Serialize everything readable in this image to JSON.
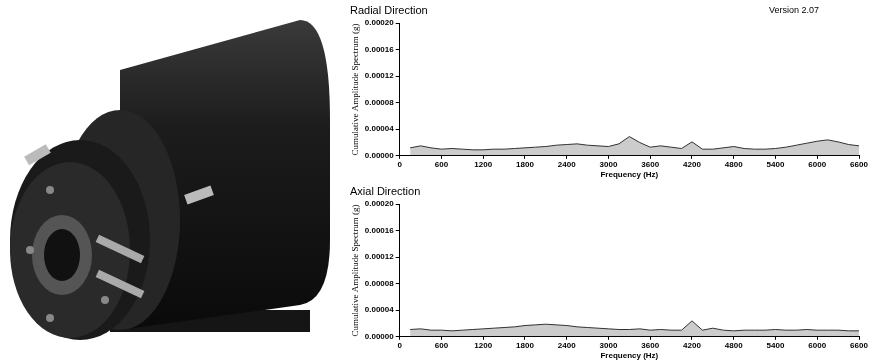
{
  "chart_data": [
    {
      "type": "line",
      "title": "Radial Direction",
      "annotation": "Version 2.07",
      "x_label": "Frequency (Hz)",
      "y_label": "Cumulative Amplitude Spectrum (g)",
      "x": [
        150,
        300,
        450,
        600,
        750,
        900,
        1050,
        1200,
        1350,
        1500,
        1650,
        1800,
        1950,
        2100,
        2250,
        2400,
        2550,
        2700,
        2850,
        3000,
        3150,
        3300,
        3450,
        3600,
        3750,
        3900,
        4050,
        4200,
        4350,
        4500,
        4650,
        4800,
        4950,
        5100,
        5250,
        5400,
        5550,
        5700,
        5850,
        6000,
        6150,
        6300,
        6450,
        6600
      ],
      "series": [
        {
          "name": "Radial Direction",
          "color": "#333333",
          "values": [
            1.2e-05,
            1.5e-05,
            1.2e-05,
            1e-05,
            1.1e-05,
            1e-05,
            9e-06,
            9e-06,
            1e-05,
            1e-05,
            1.1e-05,
            1.2e-05,
            1.3e-05,
            1.4e-05,
            1.6e-05,
            1.7e-05,
            1.8e-05,
            1.6e-05,
            1.5e-05,
            1.4e-05,
            1.8e-05,
            2.9e-05,
            2e-05,
            1.3e-05,
            1.5e-05,
            1.3e-05,
            1.1e-05,
            2.1e-05,
            1e-05,
            1e-05,
            1.2e-05,
            1.4e-05,
            1.1e-05,
            1e-05,
            1e-05,
            1.1e-05,
            1.3e-05,
            1.6e-05,
            1.9e-05,
            2.2e-05,
            2.4e-05,
            2.1e-05,
            1.7e-05,
            1.5e-05
          ]
        }
      ],
      "xlim": [
        0,
        6600
      ],
      "xticks": [
        0,
        600,
        1200,
        1800,
        2400,
        3000,
        3600,
        4200,
        4800,
        5400,
        6000,
        6600
      ],
      "ylim": [
        0,
        0.0002
      ],
      "yticks": [
        {
          "value": 0,
          "label": "0.00000"
        },
        {
          "value": 4e-05,
          "label": "0.00004"
        },
        {
          "value": 8e-05,
          "label": "0.00008"
        },
        {
          "value": 0.00012,
          "label": "0.00012"
        },
        {
          "value": 0.00016,
          "label": "0.00016"
        },
        {
          "value": 0.0002,
          "label": "0.00020"
        }
      ],
      "grid": false
    },
    {
      "type": "line",
      "title": "Axial Direction",
      "x_label": "Frequency (Hz)",
      "y_label": "Cumulative Amplitude Spectrum (g)",
      "x": [
        150,
        300,
        450,
        600,
        750,
        900,
        1050,
        1200,
        1350,
        1500,
        1650,
        1800,
        1950,
        2100,
        2250,
        2400,
        2550,
        2700,
        2850,
        3000,
        3150,
        3300,
        3450,
        3600,
        3750,
        3900,
        4050,
        4200,
        4350,
        4500,
        4650,
        4800,
        4950,
        5100,
        5250,
        5400,
        5550,
        5700,
        5850,
        6000,
        6150,
        6300,
        6450,
        6600
      ],
      "series": [
        {
          "name": "Axial Direction",
          "color": "#333333",
          "values": [
            1.1e-05,
            1.2e-05,
            1e-05,
            1e-05,
            9e-06,
            1e-05,
            1.1e-05,
            1.2e-05,
            1.3e-05,
            1.4e-05,
            1.5e-05,
            1.7e-05,
            1.8e-05,
            1.9e-05,
            1.8e-05,
            1.7e-05,
            1.5e-05,
            1.4e-05,
            1.3e-05,
            1.2e-05,
            1.1e-05,
            1.1e-05,
            1.2e-05,
            1e-05,
            1.1e-05,
            1e-05,
            1e-05,
            2.4e-05,
            1e-05,
            1.3e-05,
            1e-05,
            9e-06,
            1e-05,
            1e-05,
            1e-05,
            1.1e-05,
            1e-05,
            1e-05,
            1.1e-05,
            1e-05,
            1e-05,
            1e-05,
            9e-06,
            9e-06
          ]
        }
      ],
      "xlim": [
        0,
        6600
      ],
      "xticks": [
        0,
        600,
        1200,
        1800,
        2400,
        3000,
        3600,
        4200,
        4800,
        5400,
        6000,
        6600
      ],
      "ylim": [
        0,
        0.0002
      ],
      "yticks": [
        {
          "value": 0,
          "label": "0.00000"
        },
        {
          "value": 4e-05,
          "label": "0.00004"
        },
        {
          "value": 8e-05,
          "label": "0.00008"
        },
        {
          "value": 0.00012,
          "label": "0.00012"
        },
        {
          "value": 0.00016,
          "label": "0.00016"
        },
        {
          "value": 0.0002,
          "label": "0.00020"
        }
      ],
      "grid": false
    }
  ]
}
